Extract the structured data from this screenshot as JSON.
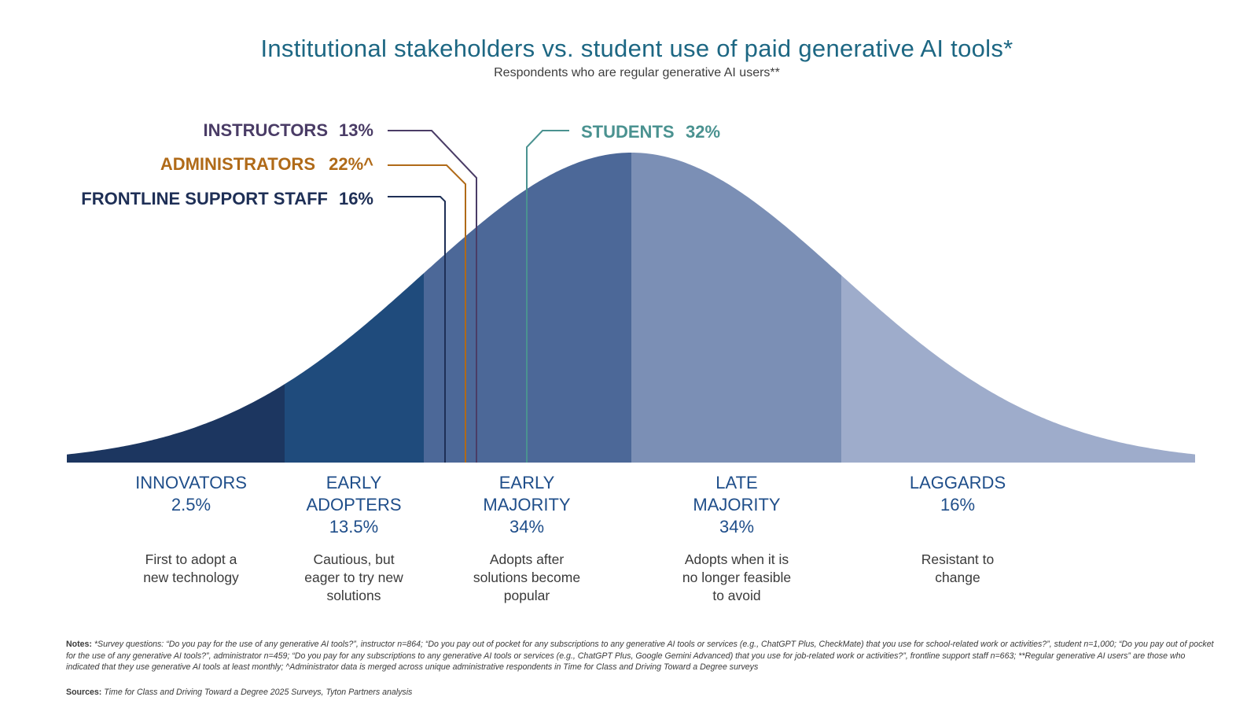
{
  "title": "Institutional stakeholders vs. student use of paid generative AI tools*",
  "subtitle": "Respondents who are regular generative AI users**",
  "colors": {
    "innovators": "#1c3660",
    "early_adopters": "#1f4b7c",
    "early_majority": "#4c6898",
    "late_majority": "#7b8fb5",
    "laggards": "#9eaccb",
    "instructors": "#4a3c66",
    "administrators": "#b06a18",
    "frontline": "#1e2f56",
    "students": "#4a9290"
  },
  "callouts": {
    "instructors": {
      "label": "INSTRUCTORS",
      "value": "13%"
    },
    "administrators": {
      "label": "ADMINISTRATORS",
      "value": "22%^"
    },
    "frontline": {
      "label": "FRONTLINE SUPPORT STAFF",
      "value": "16%"
    },
    "students": {
      "label": "STUDENTS",
      "value": "32%"
    }
  },
  "segments": [
    {
      "line1": "INNOVATORS",
      "line2": "",
      "pct": "2.5%",
      "desc1": "First to adopt a",
      "desc2": "new technology",
      "desc3": ""
    },
    {
      "line1": "EARLY",
      "line2": "ADOPTERS",
      "pct": "13.5%",
      "desc1": "Cautious, but",
      "desc2": "eager to try new",
      "desc3": "solutions"
    },
    {
      "line1": "EARLY",
      "line2": "MAJORITY",
      "pct": "34%",
      "desc1": "Adopts after",
      "desc2": "solutions become",
      "desc3": "popular"
    },
    {
      "line1": "LATE",
      "line2": "MAJORITY",
      "pct": "34%",
      "desc1": "Adopts when it is",
      "desc2": "no longer feasible",
      "desc3": "to avoid"
    },
    {
      "line1": "LAGGARDS",
      "line2": "",
      "pct": "16%",
      "desc1": "Resistant to",
      "desc2": "change",
      "desc3": ""
    }
  ],
  "notes_label": "Notes:",
  "notes_text": "*Survey questions: “Do you pay for the use of any generative AI tools?”, instructor n=864; “Do you pay out of pocket for any subscriptions to any generative AI tools or services (e.g., ChatGPT Plus, CheckMate) that you use for school-related work or activities?”, student n=1,000; “Do you pay out of pocket for the use of any generative AI tools?”, administrator n=459; “Do you pay for any subscriptions to any generative AI tools or services (e.g., ChatGPT Plus, Google Gemini Advanced) that you use for job-related work or activities?”, frontline support staff n=663; **Regular generative AI users” are those who indicated that they use generative AI tools at least monthly; ^Administrator data is merged across unique administrative respondents in Time for Class and Driving Toward a Degree surveys",
  "sources_label": "Sources:",
  "sources_text": "Time for Class and Driving Toward a Degree 2025 Surveys, Tyton Partners analysis"
}
